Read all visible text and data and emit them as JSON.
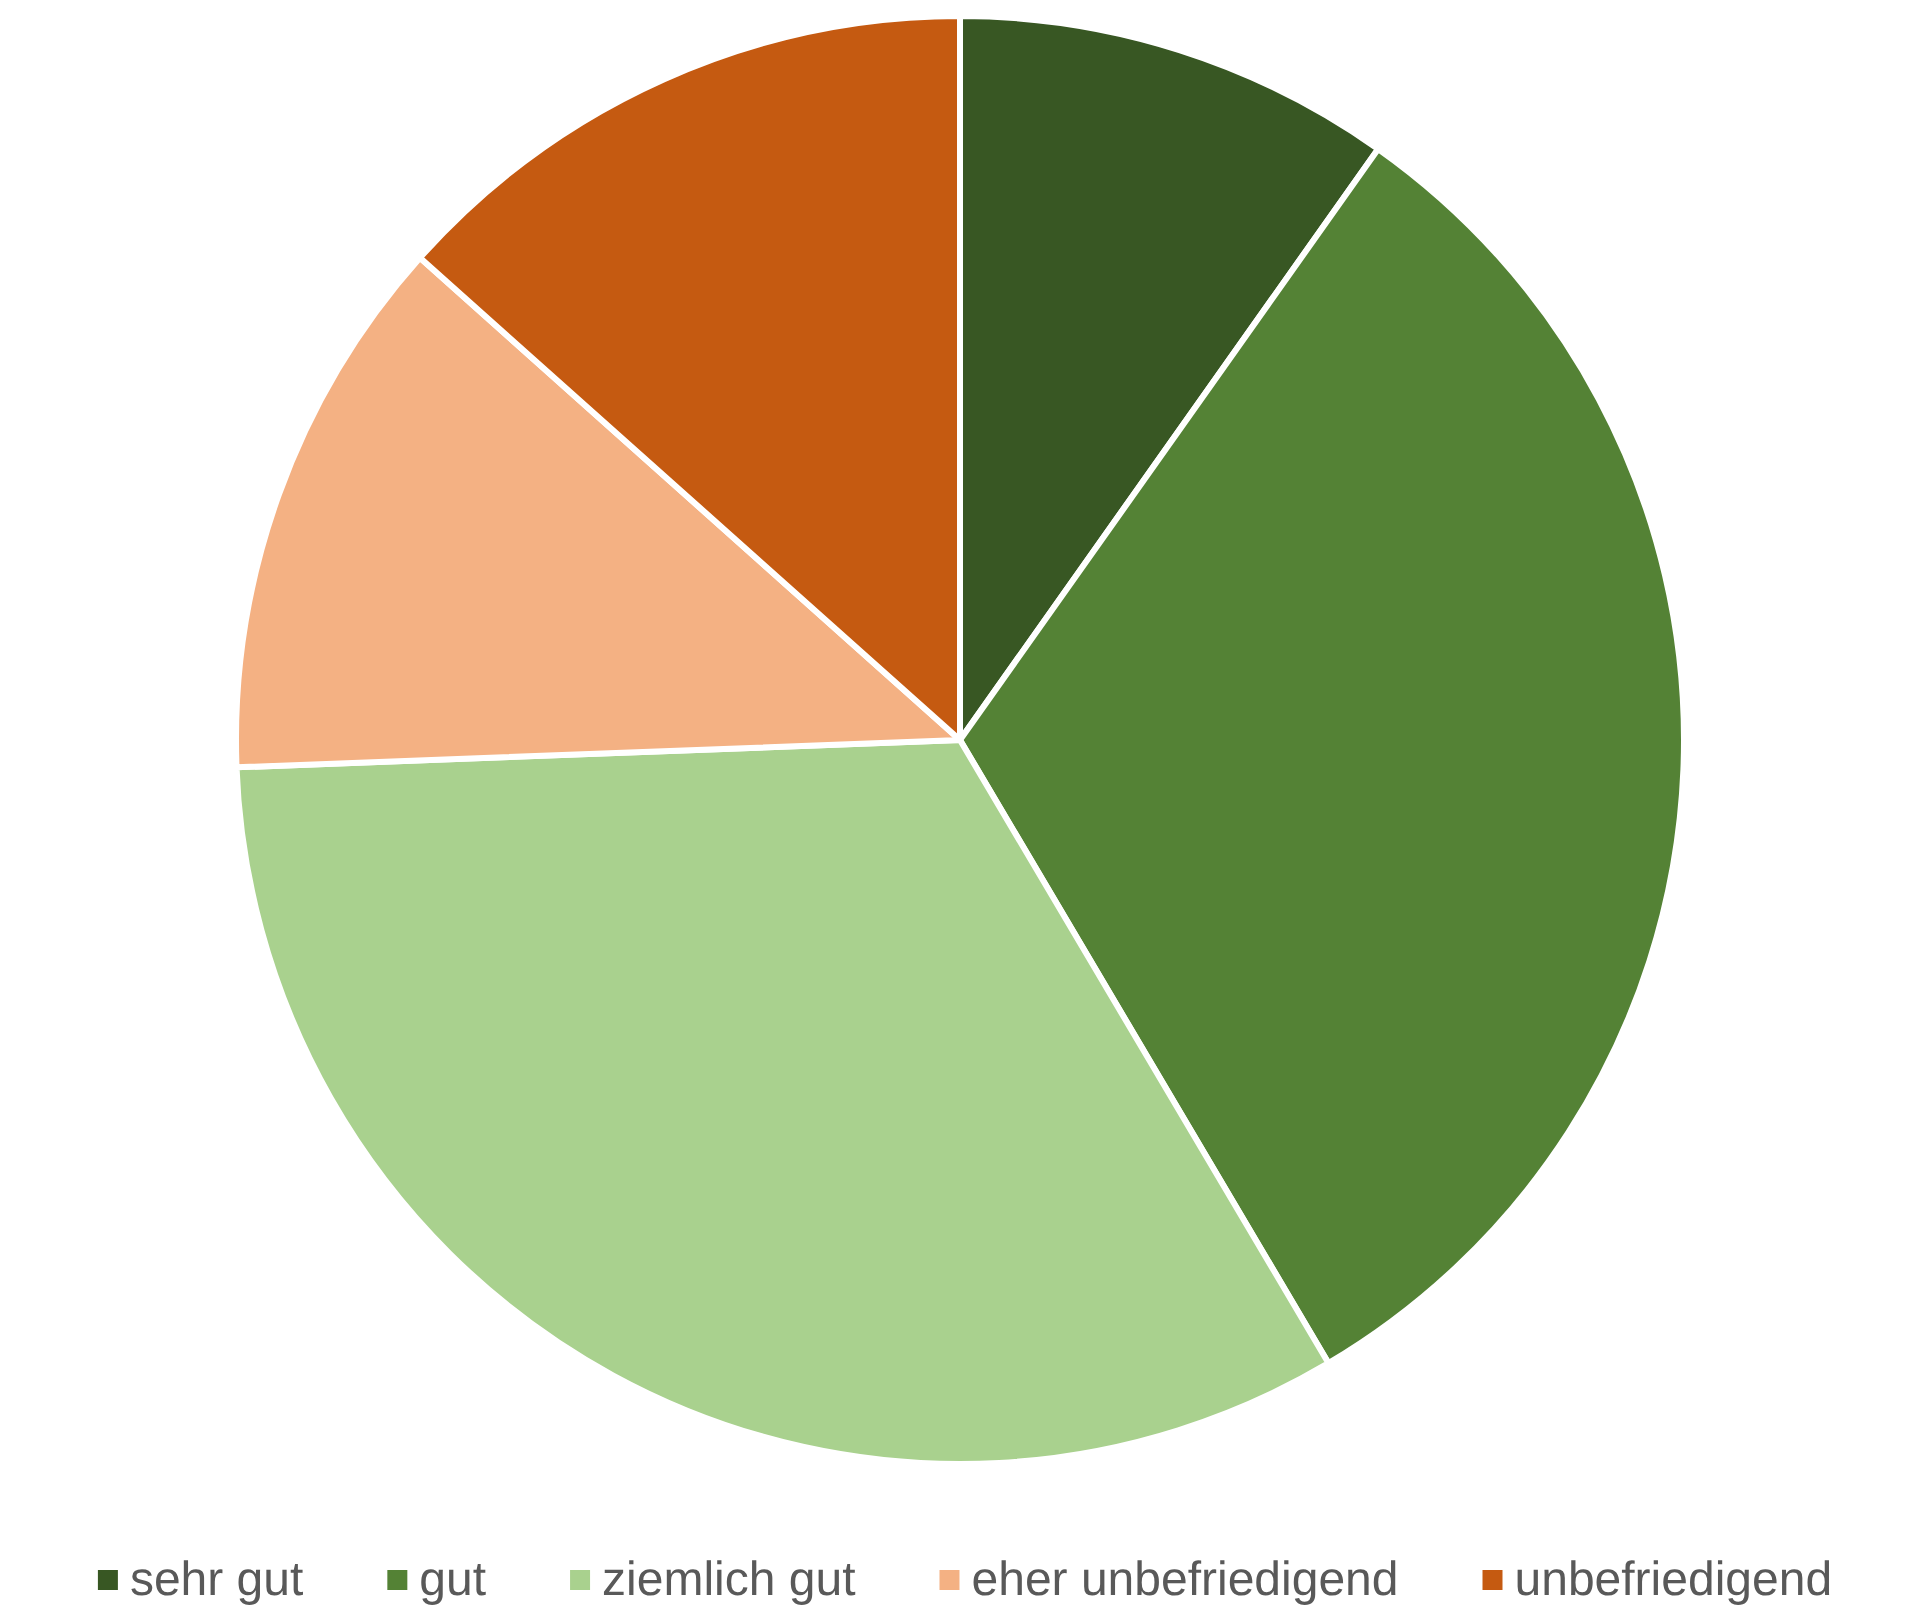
{
  "chart_data": {
    "type": "pie",
    "categories": [
      "sehr gut",
      "gut",
      "ziemlich gut",
      "eher unbefriedigend",
      "unbefriedigend"
    ],
    "values": [
      9.8,
      31.7,
      32.9,
      12.2,
      13.4
    ],
    "colors": [
      "#385723",
      "#548235",
      "#a9d18e",
      "#f4b183",
      "#c55a11"
    ],
    "legend": "bottom"
  }
}
